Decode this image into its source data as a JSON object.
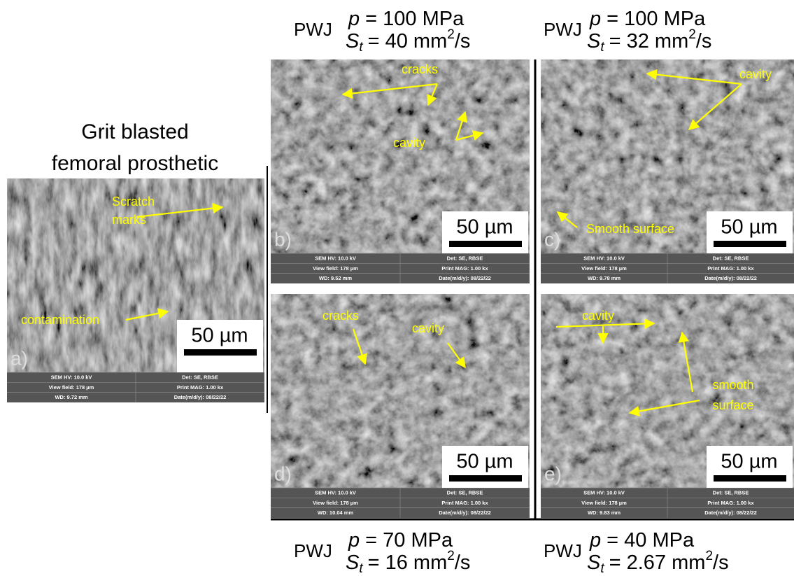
{
  "panels": [
    {
      "label": "a)",
      "title": [
        "Grit blasted",
        "femoral prosthetic"
      ],
      "annotations": [
        "Scratch",
        "marks",
        "contamination"
      ],
      "scale": "50 µm",
      "info": [
        "SEM HV: 10.0 kV",
        "Det: SE, RBSE",
        "View field: 178 µm",
        "Print MAG: 1.00 kx",
        "WD: 9.72 mm",
        "Date(m/d/y): 08/22/22"
      ]
    },
    {
      "label": "b)",
      "header": {
        "method": "PWJ",
        "p": "p",
        "p_value": "= 100 MPa",
        "s": "S",
        "s_sub": "t",
        "s_value": "= 40 mm",
        "s_sup": "2",
        "s_unit": "/s"
      },
      "annotations": [
        "cracks",
        "cavity"
      ],
      "scale": "50 µm",
      "info": [
        "SEM HV: 10.0 kV",
        "Det: SE, RBSE",
        "View field: 178 µm",
        "Print MAG: 1.00 kx",
        "WD: 9.52 mm",
        "Date(m/d/y): 08/22/22"
      ]
    },
    {
      "label": "c)",
      "header": {
        "method": "PWJ",
        "p": "p",
        "p_value": "= 100 MPa",
        "s": "S",
        "s_sub": "t",
        "s_value": "= 32 mm",
        "s_sup": "2",
        "s_unit": "/s"
      },
      "annotations": [
        "cavity",
        "Smooth surface"
      ],
      "scale": "50 µm",
      "info": [
        "SEM HV: 10.0 kV",
        "Det: SE, RBSE",
        "View field: 178 µm",
        "Print MAG: 1.00 kx",
        "WD: 9.78 mm",
        "Date(m/d/y): 08/22/22"
      ]
    },
    {
      "label": "d)",
      "header": {
        "method": "PWJ",
        "p": "p",
        "p_value": "= 70 MPa",
        "s": "S",
        "s_sub": "t",
        "s_value": "= 16 mm",
        "s_sup": "2",
        "s_unit": "/s"
      },
      "annotations": [
        "cracks",
        "cavity"
      ],
      "scale": "50 µm",
      "info": [
        "SEM HV: 10.0 kV",
        "Det: SE, RBSE",
        "View field: 178 µm",
        "Print MAG: 1.00 kx",
        "WD: 10.04 mm",
        "Date(m/d/y): 08/22/22"
      ]
    },
    {
      "label": "e)",
      "header": {
        "method": "PWJ",
        "p": "p",
        "p_value": "= 40 MPa",
        "s": "S",
        "s_sub": "t",
        "s_value": "= 2.67 mm",
        "s_sup": "2",
        "s_unit": "/s"
      },
      "annotations": [
        "cavity",
        "smooth",
        "surface"
      ],
      "scale": "50 µm",
      "info": [
        "SEM HV: 10.0 kV",
        "Det: SE, RBSE",
        "View field: 178 µm",
        "Print MAG: 1.00 kx",
        "WD: 9.83 mm",
        "Date(m/d/y): 08/22/22"
      ]
    }
  ]
}
